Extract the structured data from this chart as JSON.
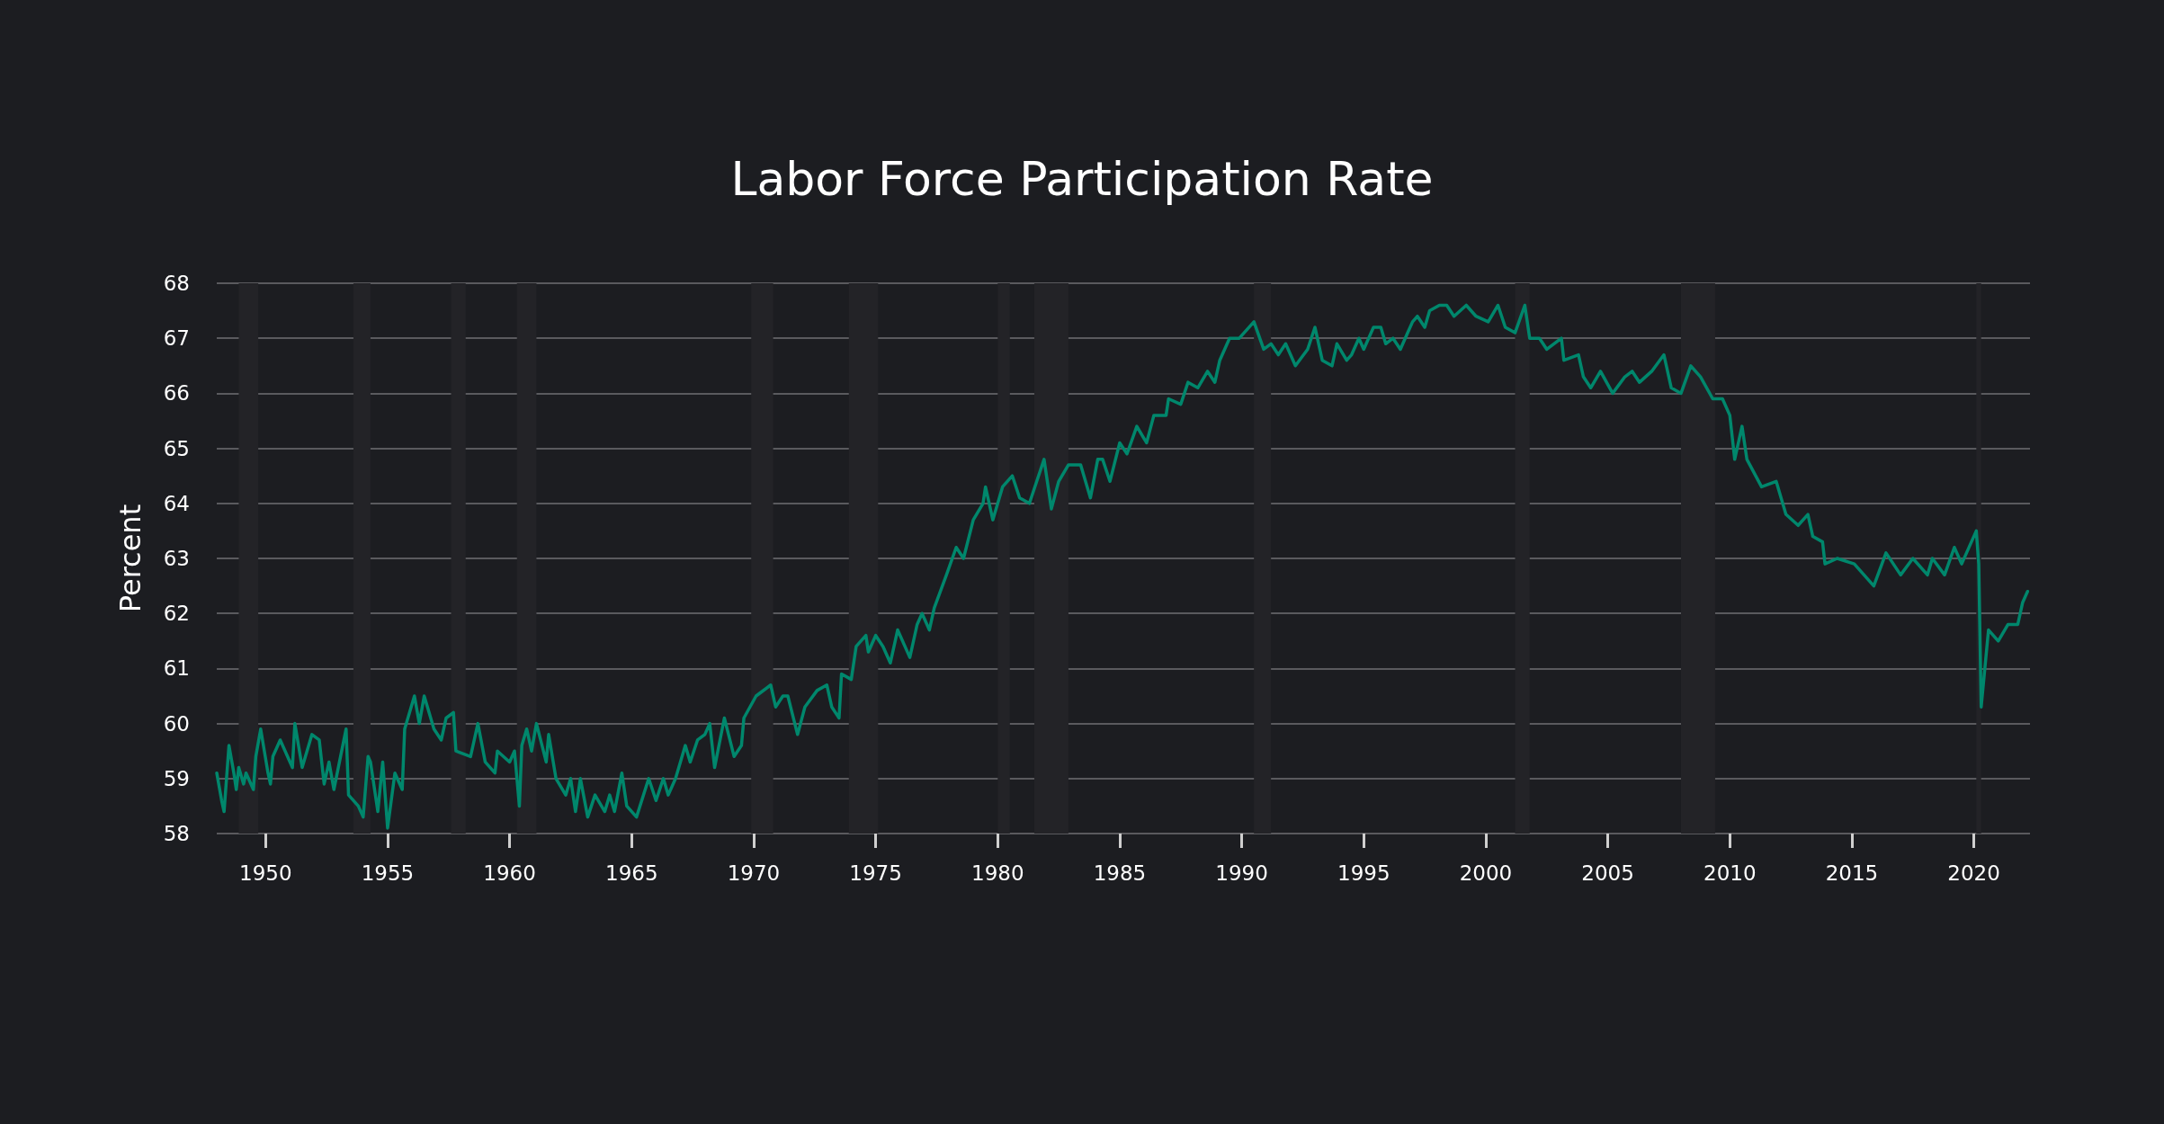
{
  "chart_data": {
    "type": "line",
    "title": "Labor Force Participation Rate",
    "ylabel": "Percent",
    "xlim": [
      1948,
      2022.3
    ],
    "xticks": [
      1950,
      1955,
      1960,
      1965,
      1970,
      1975,
      1980,
      1985,
      1990,
      1995,
      2000,
      2005,
      2010,
      2015,
      2020
    ],
    "ylim": [
      58,
      68
    ],
    "yticks": [
      58,
      59,
      60,
      61,
      62,
      63,
      64,
      65,
      66,
      67,
      68
    ],
    "grid": "y",
    "marker": "none",
    "line_style": "solid",
    "bands": [
      {
        "axis": "x",
        "from": 1948.9,
        "to": 1949.7,
        "color": "#232327"
      },
      {
        "axis": "x",
        "from": 1953.6,
        "to": 1954.3,
        "color": "#232327"
      },
      {
        "axis": "x",
        "from": 1957.6,
        "to": 1958.2,
        "color": "#232327"
      },
      {
        "axis": "x",
        "from": 1960.3,
        "to": 1961.1,
        "color": "#232327"
      },
      {
        "axis": "x",
        "from": 1969.9,
        "to": 1970.8,
        "color": "#232327"
      },
      {
        "axis": "x",
        "from": 1973.9,
        "to": 1975.1,
        "color": "#232327"
      },
      {
        "axis": "x",
        "from": 1980.0,
        "to": 1980.5,
        "color": "#232327"
      },
      {
        "axis": "x",
        "from": 1981.5,
        "to": 1982.9,
        "color": "#232327"
      },
      {
        "axis": "x",
        "from": 1990.5,
        "to": 1991.2,
        "color": "#232327"
      },
      {
        "axis": "x",
        "from": 2001.2,
        "to": 2001.8,
        "color": "#232327"
      },
      {
        "axis": "x",
        "from": 2008.0,
        "to": 2009.4,
        "color": "#232327"
      },
      {
        "axis": "x",
        "from": 2020.1,
        "to": 2020.3,
        "color": "#232327"
      }
    ],
    "series": [
      {
        "color": "#00876c",
        "x": [
          1948.0,
          1948.2,
          1948.3,
          1948.5,
          1948.7,
          1948.8,
          1948.9,
          1949.1,
          1949.2,
          1949.5,
          1949.6,
          1949.8,
          1950.1,
          1950.2,
          1950.3,
          1950.6,
          1951.1,
          1951.2,
          1951.5,
          1951.9,
          1952.2,
          1952.4,
          1952.6,
          1952.8,
          1953.3,
          1953.4,
          1953.8,
          1954.0,
          1954.2,
          1954.3,
          1954.6,
          1954.8,
          1955.0,
          1955.3,
          1955.6,
          1955.7,
          1956.1,
          1956.3,
          1956.5,
          1956.9,
          1957.2,
          1957.4,
          1957.7,
          1957.8,
          1958.4,
          1958.7,
          1959.0,
          1959.4,
          1959.5,
          1960.0,
          1960.2,
          1960.4,
          1960.5,
          1960.7,
          1960.9,
          1961.1,
          1961.5,
          1961.6,
          1961.9,
          1962.3,
          1962.5,
          1962.7,
          1962.9,
          1963.2,
          1963.5,
          1963.9,
          1964.1,
          1964.3,
          1964.6,
          1964.8,
          1965.2,
          1965.7,
          1966.0,
          1966.3,
          1966.5,
          1966.8,
          1967.2,
          1967.4,
          1967.7,
          1968.0,
          1968.2,
          1968.4,
          1968.8,
          1969.2,
          1969.5,
          1969.6,
          1970.1,
          1970.7,
          1970.9,
          1971.2,
          1971.4,
          1971.8,
          1972.1,
          1972.6,
          1973.0,
          1973.2,
          1973.5,
          1973.6,
          1974.0,
          1974.2,
          1974.6,
          1974.7,
          1975.0,
          1975.3,
          1975.6,
          1975.9,
          1976.4,
          1976.7,
          1976.9,
          1977.2,
          1977.4,
          1977.9,
          1978.3,
          1978.6,
          1979.0,
          1979.4,
          1979.5,
          1979.8,
          1980.2,
          1980.6,
          1980.9,
          1981.3,
          1981.6,
          1981.9,
          1982.2,
          1982.5,
          1982.9,
          1983.4,
          1983.8,
          1984.1,
          1984.3,
          1984.6,
          1985.0,
          1985.3,
          1985.7,
          1986.1,
          1986.4,
          1986.9,
          1987.0,
          1987.5,
          1987.8,
          1988.2,
          1988.6,
          1988.9,
          1989.1,
          1989.5,
          1989.9,
          1990.5,
          1990.9,
          1991.2,
          1991.5,
          1991.8,
          1992.2,
          1992.7,
          1993.0,
          1993.3,
          1993.7,
          1993.9,
          1994.3,
          1994.5,
          1994.8,
          1995.0,
          1995.4,
          1995.7,
          1995.9,
          1996.2,
          1996.5,
          1996.8,
          1997.0,
          1997.2,
          1997.5,
          1997.7,
          1998.1,
          1998.4,
          1998.7,
          1999.2,
          1999.6,
          2000.1,
          2000.5,
          2000.8,
          2001.2,
          2001.6,
          2001.8,
          2002.2,
          2002.5,
          2003.1,
          2003.2,
          2003.8,
          2004.0,
          2004.3,
          2004.7,
          2005.2,
          2005.7,
          2006.0,
          2006.3,
          2006.8,
          2007.3,
          2007.6,
          2008.0,
          2008.4,
          2008.8,
          2009.3,
          2009.7,
          2010.0,
          2010.2,
          2010.5,
          2010.7,
          2011.3,
          2011.9,
          2012.3,
          2012.8,
          2013.2,
          2013.4,
          2013.8,
          2013.9,
          2014.4,
          2015.1,
          2015.5,
          2015.9,
          2016.4,
          2017.0,
          2017.5,
          2018.1,
          2018.3,
          2018.8,
          2019.2,
          2019.5,
          2020.1,
          2020.2,
          2020.3,
          2020.6,
          2021.0,
          2021.4,
          2021.8,
          2022.0,
          2022.2
        ],
        "values": [
          59.1,
          58.6,
          58.4,
          59.6,
          59.1,
          58.8,
          59.2,
          58.9,
          59.1,
          58.8,
          59.4,
          59.9,
          59.1,
          58.9,
          59.4,
          59.7,
          59.2,
          60.0,
          59.2,
          59.8,
          59.7,
          58.9,
          59.3,
          58.8,
          59.9,
          58.7,
          58.5,
          58.3,
          59.4,
          59.3,
          58.4,
          59.3,
          58.1,
          59.1,
          58.8,
          59.9,
          60.5,
          60.0,
          60.5,
          59.9,
          59.7,
          60.1,
          60.2,
          59.5,
          59.4,
          60.0,
          59.3,
          59.1,
          59.5,
          59.3,
          59.5,
          58.5,
          59.6,
          59.9,
          59.5,
          60.0,
          59.3,
          59.8,
          59.0,
          58.7,
          59.0,
          58.4,
          59.0,
          58.3,
          58.7,
          58.4,
          58.7,
          58.4,
          59.1,
          58.5,
          58.3,
          59.0,
          58.6,
          59.0,
          58.7,
          59.0,
          59.6,
          59.3,
          59.7,
          59.8,
          60.0,
          59.2,
          60.1,
          59.4,
          59.6,
          60.1,
          60.5,
          60.7,
          60.3,
          60.5,
          60.5,
          59.8,
          60.3,
          60.6,
          60.7,
          60.3,
          60.1,
          60.9,
          60.8,
          61.4,
          61.6,
          61.3,
          61.6,
          61.4,
          61.1,
          61.7,
          61.2,
          61.8,
          62.0,
          61.7,
          62.1,
          62.7,
          63.2,
          63.0,
          63.7,
          64.0,
          64.3,
          63.7,
          64.3,
          64.5,
          64.1,
          64.0,
          64.4,
          64.8,
          63.9,
          64.4,
          64.7,
          64.7,
          64.1,
          64.8,
          64.8,
          64.4,
          65.1,
          64.9,
          65.4,
          65.1,
          65.6,
          65.6,
          65.9,
          65.8,
          66.2,
          66.1,
          66.4,
          66.2,
          66.6,
          67.0,
          67.0,
          67.3,
          66.8,
          66.9,
          66.7,
          66.9,
          66.5,
          66.8,
          67.2,
          66.6,
          66.5,
          66.9,
          66.6,
          66.7,
          67.0,
          66.8,
          67.2,
          67.2,
          66.9,
          67.0,
          66.8,
          67.1,
          67.3,
          67.4,
          67.2,
          67.5,
          67.6,
          67.6,
          67.4,
          67.6,
          67.4,
          67.3,
          67.6,
          67.2,
          67.1,
          67.6,
          67.0,
          67.0,
          66.8,
          67.0,
          66.6,
          66.7,
          66.3,
          66.1,
          66.4,
          66.0,
          66.3,
          66.4,
          66.2,
          66.4,
          66.7,
          66.1,
          66.0,
          66.5,
          66.3,
          65.9,
          65.9,
          65.6,
          64.8,
          65.4,
          64.8,
          64.3,
          64.4,
          63.8,
          63.6,
          63.8,
          63.4,
          63.3,
          62.9,
          63.0,
          62.9,
          62.7,
          62.5,
          63.1,
          62.7,
          63.0,
          62.7,
          63.0,
          62.7,
          63.2,
          62.9,
          63.5,
          62.9,
          60.3,
          61.7,
          61.5,
          61.8,
          61.8,
          62.2,
          62.4
        ]
      }
    ]
  }
}
